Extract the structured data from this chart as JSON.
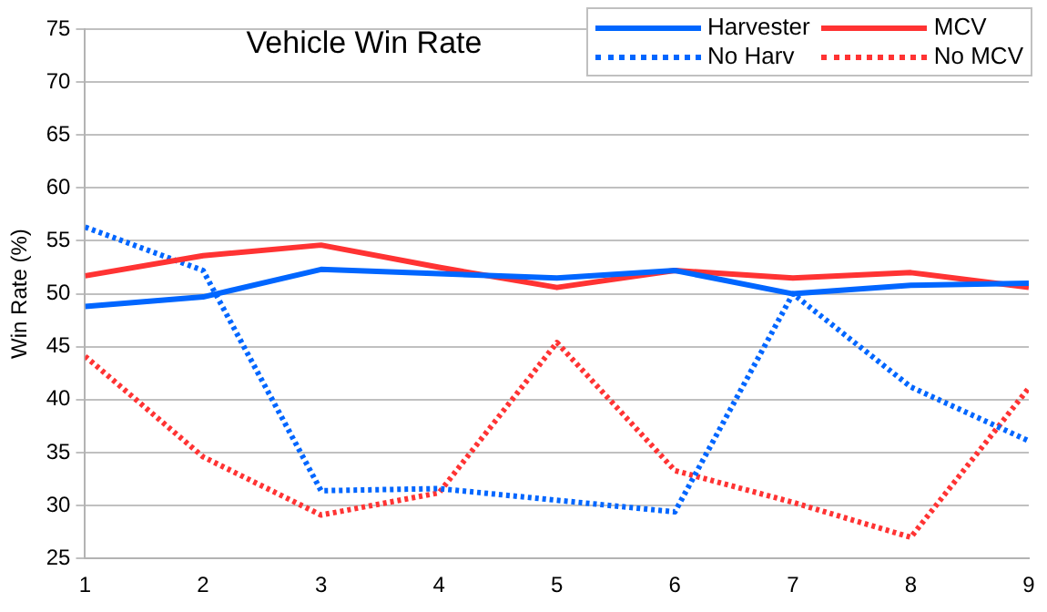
{
  "chart_data": {
    "type": "line",
    "title": "Vehicle Win Rate",
    "ylabel": "Win Rate (%)",
    "x": [
      1,
      2,
      3,
      4,
      5,
      6,
      7,
      8,
      9
    ],
    "xlim": [
      1,
      9
    ],
    "xticks": [
      1,
      2,
      3,
      4,
      5,
      6,
      7,
      8,
      9
    ],
    "ylim": [
      25,
      75
    ],
    "yticks": [
      25,
      30,
      35,
      40,
      45,
      50,
      55,
      60,
      65,
      70,
      75
    ],
    "grid": "y",
    "legend": "top right",
    "marker": "none",
    "series": [
      {
        "name": "Harvester",
        "color": "#0066ff",
        "line_style": "solid",
        "values": [
          48.8,
          49.7,
          52.3,
          51.9,
          51.5,
          52.2,
          50.0,
          50.8,
          51.0
        ]
      },
      {
        "name": "MCV",
        "color": "#ff3333",
        "line_style": "solid",
        "values": [
          51.7,
          53.6,
          54.6,
          52.5,
          50.6,
          52.2,
          51.5,
          52.0,
          50.6
        ]
      },
      {
        "name": "No Harv",
        "color": "#0066ff",
        "line_style": "dotted",
        "values": [
          56.3,
          52.2,
          31.4,
          31.6,
          30.5,
          29.4,
          50.0,
          41.2,
          36.1
        ]
      },
      {
        "name": "No MCV",
        "color": "#ff3333",
        "line_style": "dotted",
        "values": [
          44.1,
          34.6,
          29.1,
          31.2,
          45.4,
          33.3,
          30.3,
          27.0,
          41.1
        ]
      }
    ]
  }
}
